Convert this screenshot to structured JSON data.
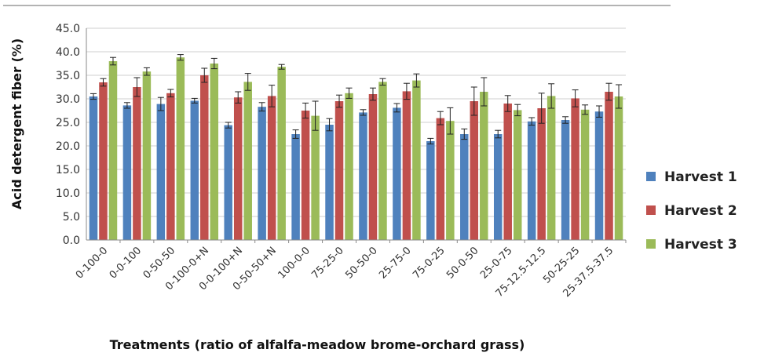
{
  "chart_data": {
    "type": "bar",
    "xlabel": "Treatments (ratio of alfalfa-meadow brome-orchard grass)",
    "ylabel": "Acid detergent fiber (%)",
    "ylim": [
      0,
      45
    ],
    "yticks": [
      "0.0",
      "5.0",
      "10.0",
      "15.0",
      "20.0",
      "25.0",
      "30.0",
      "35.0",
      "40.0",
      "45.0"
    ],
    "grid": true,
    "legend_position": "right",
    "categories": [
      "0-100-0",
      "0-0-100",
      "0-50-50",
      "0-100-0+N",
      "0-0-100+N",
      "0-50-50+N",
      "100-0-0",
      "75-25-0",
      "50-50-0",
      "25-75-0",
      "75-0-25",
      "50-0-50",
      "25-0-75",
      "75-12.5-12.5",
      "50-25-25",
      "25-37.5-37.5"
    ],
    "series": [
      {
        "name": "Harvest 1",
        "color": "#4f81bd",
        "values": [
          30.5,
          28.6,
          28.9,
          29.6,
          24.4,
          28.3,
          22.5,
          24.5,
          27.1,
          28.1,
          21.0,
          22.5,
          22.5,
          25.2,
          25.5,
          27.3
        ],
        "errors": [
          0.6,
          0.6,
          1.4,
          0.5,
          0.6,
          0.9,
          0.9,
          1.3,
          0.6,
          0.9,
          0.6,
          1.1,
          0.8,
          0.8,
          0.7,
          1.2
        ]
      },
      {
        "name": "Harvest 2",
        "color": "#c0504d",
        "values": [
          33.5,
          32.5,
          31.2,
          35.0,
          30.3,
          30.6,
          27.5,
          29.5,
          31.0,
          31.6,
          25.9,
          29.5,
          29.0,
          28.0,
          30.1,
          31.5
        ],
        "errors": [
          0.8,
          2.0,
          0.8,
          1.5,
          1.2,
          2.3,
          1.6,
          1.3,
          1.3,
          1.7,
          1.4,
          3.0,
          1.7,
          3.2,
          1.8,
          1.8
        ]
      },
      {
        "name": "Harvest 3",
        "color": "#9bbb59",
        "values": [
          38.0,
          35.8,
          38.8,
          37.5,
          33.6,
          36.8,
          26.4,
          31.2,
          33.6,
          33.9,
          25.3,
          31.5,
          27.6,
          30.6,
          27.7,
          30.5
        ],
        "errors": [
          0.8,
          0.8,
          0.6,
          1.1,
          1.8,
          0.5,
          3.1,
          1.1,
          0.7,
          1.4,
          2.8,
          3.0,
          1.2,
          2.6,
          1.0,
          2.5
        ]
      }
    ]
  }
}
